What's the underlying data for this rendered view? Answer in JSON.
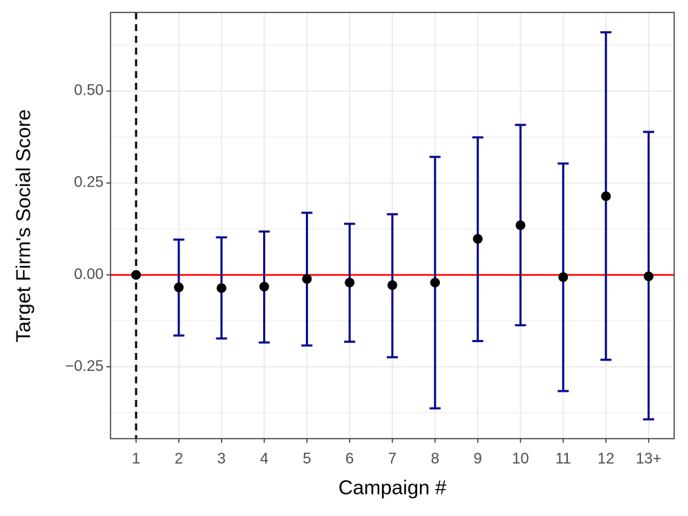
{
  "chart_data": {
    "type": "errorbar",
    "x_label": "Campaign #",
    "y_label": "Target Firm's Social Score",
    "categories": [
      "1",
      "2",
      "3",
      "4",
      "5",
      "6",
      "7",
      "8",
      "9",
      "10",
      "11",
      "12",
      "13+"
    ],
    "series": [
      {
        "color": "#000000",
        "error_color": "#00008b",
        "values": [
          0,
          -0.034,
          -0.036,
          -0.032,
          -0.011,
          -0.021,
          -0.028,
          -0.021,
          0.098,
          0.135,
          -0.006,
          0.214,
          -0.004
        ],
        "lower": [
          null,
          -0.165,
          -0.173,
          -0.184,
          -0.192,
          -0.182,
          -0.224,
          -0.363,
          -0.18,
          -0.137,
          -0.316,
          -0.231,
          -0.393
        ],
        "upper": [
          null,
          0.096,
          0.102,
          0.118,
          0.169,
          0.139,
          0.165,
          0.321,
          0.374,
          0.408,
          0.303,
          0.66,
          0.389
        ]
      }
    ],
    "ylim": [
      -0.4455,
      0.714
    ],
    "yticks": [
      {
        "value": -0.25,
        "label": "−0.25"
      },
      {
        "value": 0,
        "label": "0.00"
      },
      {
        "value": 0.25,
        "label": "0.25"
      },
      {
        "value": 0.5,
        "label": "0.50"
      }
    ],
    "grid": true,
    "reference_lines": {
      "y": 0,
      "y_color": "#ff0000",
      "x": "1",
      "x_color": "#000000"
    }
  }
}
